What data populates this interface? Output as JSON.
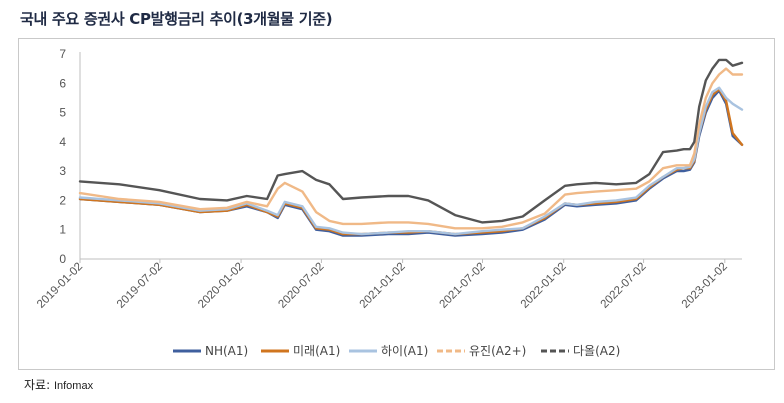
{
  "header": {
    "title": "국내 주요 증권사 CP발행금리 추이(3개월물 기준)"
  },
  "footer": {
    "source_label": "자료:",
    "source_name": "Infomax"
  },
  "chart_data": {
    "type": "line",
    "title": "국내 주요 증권사 CP발행금리 추이(3개월물 기준)",
    "xlabel": "",
    "ylabel": "",
    "ylim": [
      0,
      7
    ],
    "yticks": [
      "0",
      "1",
      "2",
      "3",
      "4",
      "5",
      "6",
      "7"
    ],
    "xticks": [
      "2019-01-02",
      "2019-07-02",
      "2020-01-02",
      "2020-07-02",
      "2021-01-02",
      "2021-07-02",
      "2022-01-02",
      "2022-07-02",
      "2023-01-02"
    ],
    "x_range": [
      "2019-01-02",
      "2023-02-10"
    ],
    "grid": false,
    "legend_position": "bottom",
    "series": [
      {
        "name": "NH(A1)",
        "color": "#3f5f9e",
        "dash": "solid",
        "x": [
          "2019-01-02",
          "2019-04-01",
          "2019-07-01",
          "2019-10-01",
          "2019-12-01",
          "2020-01-15",
          "2020-03-01",
          "2020-03-25",
          "2020-04-10",
          "2020-05-20",
          "2020-06-20",
          "2020-07-20",
          "2020-08-20",
          "2020-10-01",
          "2020-12-01",
          "2021-01-15",
          "2021-03-01",
          "2021-05-01",
          "2021-07-01",
          "2021-08-15",
          "2021-10-01",
          "2021-11-20",
          "2022-01-05",
          "2022-02-01",
          "2022-03-15",
          "2022-05-01",
          "2022-06-15",
          "2022-07-15",
          "2022-08-15",
          "2022-09-15",
          "2022-10-01",
          "2022-10-15",
          "2022-10-25",
          "2022-11-05",
          "2022-11-20",
          "2022-12-05",
          "2022-12-20",
          "2023-01-05",
          "2023-01-20",
          "2023-02-10"
        ],
        "values": [
          2.05,
          1.95,
          1.85,
          1.6,
          1.65,
          1.8,
          1.6,
          1.4,
          1.85,
          1.7,
          1.0,
          0.95,
          0.8,
          0.8,
          0.85,
          0.85,
          0.9,
          0.8,
          0.85,
          0.9,
          1.0,
          1.35,
          1.85,
          1.8,
          1.85,
          1.9,
          2.0,
          2.4,
          2.75,
          3.0,
          3.0,
          3.05,
          3.3,
          4.2,
          5.0,
          5.5,
          5.75,
          5.3,
          4.2,
          3.9
        ]
      },
      {
        "name": "미래(A1)",
        "color": "#d0751f",
        "dash": "solid",
        "x": [
          "2019-01-02",
          "2019-04-01",
          "2019-07-01",
          "2019-10-01",
          "2019-12-01",
          "2020-01-15",
          "2020-03-01",
          "2020-03-25",
          "2020-04-10",
          "2020-05-20",
          "2020-06-20",
          "2020-07-20",
          "2020-08-20",
          "2020-10-01",
          "2020-12-01",
          "2021-01-15",
          "2021-03-01",
          "2021-05-01",
          "2021-07-01",
          "2021-08-15",
          "2021-10-01",
          "2021-11-20",
          "2022-01-05",
          "2022-02-01",
          "2022-03-15",
          "2022-05-01",
          "2022-06-15",
          "2022-07-15",
          "2022-08-15",
          "2022-09-15",
          "2022-10-01",
          "2022-10-15",
          "2022-10-25",
          "2022-11-05",
          "2022-11-20",
          "2022-12-05",
          "2022-12-20",
          "2023-01-05",
          "2023-01-20",
          "2023-02-10"
        ],
        "values": [
          2.05,
          1.95,
          1.85,
          1.6,
          1.65,
          1.85,
          1.6,
          1.45,
          1.9,
          1.75,
          1.05,
          1.0,
          0.85,
          0.85,
          0.9,
          0.9,
          0.95,
          0.85,
          0.9,
          0.95,
          1.05,
          1.4,
          1.9,
          1.85,
          1.9,
          1.95,
          2.05,
          2.45,
          2.8,
          3.05,
          3.1,
          3.1,
          3.35,
          4.3,
          5.1,
          5.6,
          5.8,
          5.4,
          4.3,
          3.9
        ]
      },
      {
        "name": "하이(A1)",
        "color": "#a9c3e0",
        "dash": "solid",
        "x": [
          "2019-01-02",
          "2019-04-01",
          "2019-07-01",
          "2019-10-01",
          "2019-12-01",
          "2020-01-15",
          "2020-03-01",
          "2020-03-25",
          "2020-04-10",
          "2020-05-20",
          "2020-06-20",
          "2020-07-20",
          "2020-08-20",
          "2020-10-01",
          "2020-12-01",
          "2021-01-15",
          "2021-03-01",
          "2021-05-01",
          "2021-07-01",
          "2021-08-15",
          "2021-10-01",
          "2021-11-20",
          "2022-01-05",
          "2022-02-01",
          "2022-03-15",
          "2022-05-01",
          "2022-06-15",
          "2022-07-15",
          "2022-08-15",
          "2022-09-15",
          "2022-10-01",
          "2022-10-15",
          "2022-10-25",
          "2022-11-05",
          "2022-11-20",
          "2022-12-05",
          "2022-12-20",
          "2023-01-05",
          "2023-01-20",
          "2023-02-10"
        ],
        "values": [
          2.1,
          2.0,
          1.9,
          1.65,
          1.7,
          1.9,
          1.65,
          1.5,
          1.95,
          1.8,
          1.1,
          1.05,
          0.9,
          0.85,
          0.9,
          0.95,
          0.95,
          0.85,
          0.95,
          1.0,
          1.05,
          1.45,
          1.9,
          1.85,
          1.95,
          2.0,
          2.1,
          2.5,
          2.8,
          3.1,
          3.1,
          3.15,
          3.4,
          4.3,
          5.2,
          5.7,
          5.85,
          5.5,
          5.3,
          5.1
        ]
      },
      {
        "name": "유진(A2+)",
        "color": "#f0b987",
        "dash": "dashed",
        "x": [
          "2019-01-02",
          "2019-04-01",
          "2019-07-01",
          "2019-10-01",
          "2019-12-01",
          "2020-01-15",
          "2020-03-01",
          "2020-03-25",
          "2020-04-10",
          "2020-05-20",
          "2020-06-20",
          "2020-07-20",
          "2020-08-20",
          "2020-10-01",
          "2020-12-01",
          "2021-01-15",
          "2021-03-01",
          "2021-05-01",
          "2021-07-01",
          "2021-08-15",
          "2021-10-01",
          "2021-11-20",
          "2022-01-05",
          "2022-02-01",
          "2022-03-15",
          "2022-05-01",
          "2022-06-15",
          "2022-07-15",
          "2022-08-15",
          "2022-09-15",
          "2022-10-01",
          "2022-10-15",
          "2022-10-25",
          "2022-11-05",
          "2022-11-20",
          "2022-12-05",
          "2022-12-20",
          "2023-01-05",
          "2023-01-20",
          "2023-02-10"
        ],
        "values": [
          2.25,
          2.05,
          1.95,
          1.7,
          1.75,
          1.95,
          1.8,
          2.4,
          2.6,
          2.3,
          1.6,
          1.3,
          1.2,
          1.2,
          1.25,
          1.25,
          1.2,
          1.05,
          1.05,
          1.1,
          1.25,
          1.55,
          2.2,
          2.25,
          2.3,
          2.35,
          2.4,
          2.65,
          3.1,
          3.2,
          3.2,
          3.2,
          3.6,
          4.6,
          5.5,
          6.0,
          6.3,
          6.5,
          6.3,
          6.3
        ]
      },
      {
        "name": "다올(A2)",
        "color": "#555555",
        "dash": "dashed",
        "x": [
          "2019-01-02",
          "2019-04-01",
          "2019-07-01",
          "2019-10-01",
          "2019-12-01",
          "2020-01-15",
          "2020-03-01",
          "2020-03-25",
          "2020-04-10",
          "2020-05-20",
          "2020-06-20",
          "2020-07-20",
          "2020-08-20",
          "2020-10-01",
          "2020-12-01",
          "2021-01-15",
          "2021-03-01",
          "2021-05-01",
          "2021-07-01",
          "2021-08-15",
          "2021-10-01",
          "2021-11-20",
          "2022-01-05",
          "2022-02-01",
          "2022-03-15",
          "2022-05-01",
          "2022-06-15",
          "2022-07-15",
          "2022-08-15",
          "2022-09-15",
          "2022-10-01",
          "2022-10-15",
          "2022-10-25",
          "2022-11-05",
          "2022-11-20",
          "2022-12-05",
          "2022-12-20",
          "2023-01-05",
          "2023-01-20",
          "2023-02-10"
        ],
        "values": [
          2.65,
          2.55,
          2.35,
          2.05,
          2.0,
          2.15,
          2.05,
          2.85,
          2.9,
          3.0,
          2.7,
          2.55,
          2.05,
          2.1,
          2.15,
          2.15,
          2.0,
          1.5,
          1.25,
          1.3,
          1.45,
          2.0,
          2.5,
          2.55,
          2.6,
          2.55,
          2.6,
          2.9,
          3.65,
          3.7,
          3.75,
          3.75,
          4.0,
          5.2,
          6.1,
          6.5,
          6.8,
          6.8,
          6.6,
          6.7
        ]
      }
    ]
  }
}
